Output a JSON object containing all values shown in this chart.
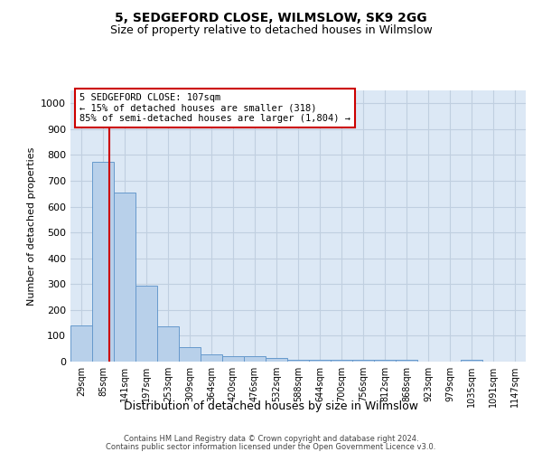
{
  "title": "5, SEDGEFORD CLOSE, WILMSLOW, SK9 2GG",
  "subtitle": "Size of property relative to detached houses in Wilmslow",
  "xlabel": "Distribution of detached houses by size in Wilmslow",
  "ylabel": "Number of detached properties",
  "categories": [
    "29sqm",
    "85sqm",
    "141sqm",
    "197sqm",
    "253sqm",
    "309sqm",
    "364sqm",
    "420sqm",
    "476sqm",
    "532sqm",
    "588sqm",
    "644sqm",
    "700sqm",
    "756sqm",
    "812sqm",
    "868sqm",
    "923sqm",
    "979sqm",
    "1035sqm",
    "1091sqm",
    "1147sqm"
  ],
  "values": [
    140,
    775,
    655,
    295,
    137,
    57,
    28,
    20,
    20,
    14,
    8,
    8,
    8,
    8,
    8,
    8,
    0,
    0,
    8,
    0,
    0
  ],
  "bar_color": "#b8d0ea",
  "bar_edge_color": "#6699cc",
  "vline_x": 1.3,
  "vline_color": "#cc0000",
  "ylim": [
    0,
    1050
  ],
  "yticks": [
    0,
    100,
    200,
    300,
    400,
    500,
    600,
    700,
    800,
    900,
    1000
  ],
  "annotation_text": "5 SEDGEFORD CLOSE: 107sqm\n← 15% of detached houses are smaller (318)\n85% of semi-detached houses are larger (1,804) →",
  "annotation_box_color": "#cc0000",
  "axes_bg_color": "#dce8f5",
  "background_color": "#ffffff",
  "grid_color": "#c0cfe0",
  "footer_line1": "Contains HM Land Registry data © Crown copyright and database right 2024.",
  "footer_line2": "Contains public sector information licensed under the Open Government Licence v3.0."
}
